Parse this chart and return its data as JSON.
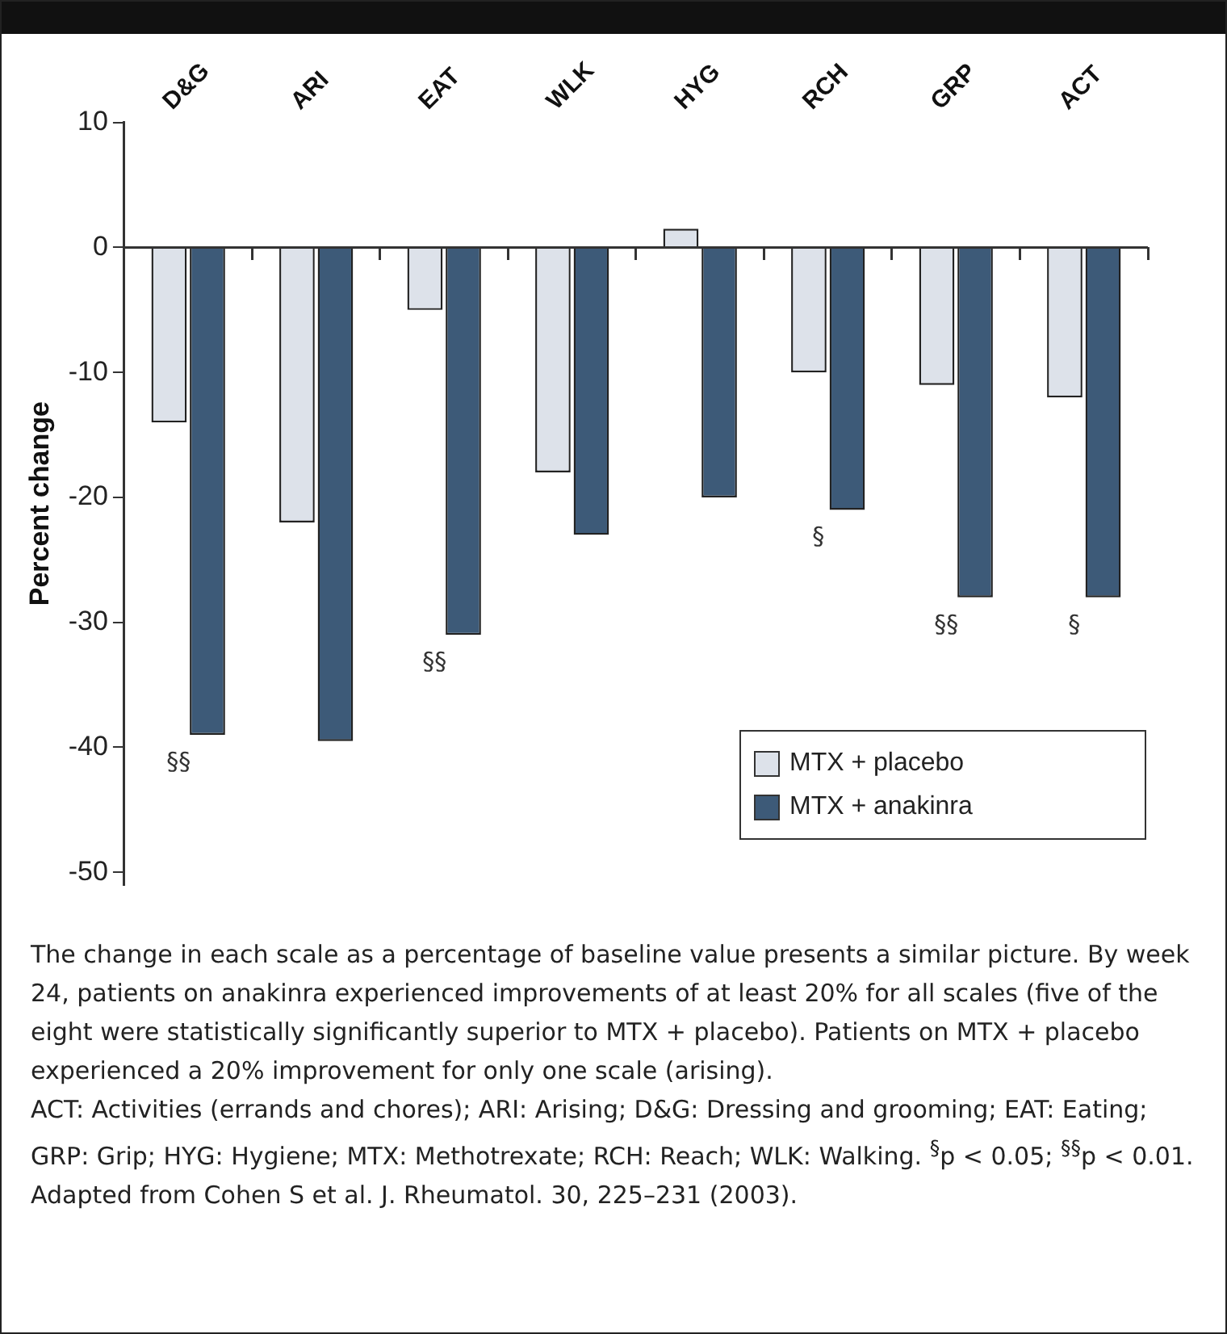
{
  "chart_data": {
    "type": "bar",
    "ylabel": "Percent change",
    "categories": [
      "D&G",
      "ARI",
      "EAT",
      "WLK",
      "HYG",
      "RCH",
      "GRP",
      "ACT"
    ],
    "series": [
      {
        "name": "MTX + placebo",
        "color": "#dde2ea",
        "values": [
          -14,
          -22,
          -5,
          -18,
          1.5,
          -10,
          -11,
          -12
        ]
      },
      {
        "name": "MTX + anakinra",
        "color": "#3d5a78",
        "values": [
          -39,
          -39.5,
          -31,
          -23,
          -20,
          -21,
          -28,
          -28
        ]
      }
    ],
    "ref_lines": [
      {
        "axis": "y",
        "value": 0,
        "color": "#333333"
      }
    ],
    "ylim": [
      -51,
      10
    ],
    "yticks": [
      -50,
      -40,
      -30,
      -20,
      -10,
      0,
      10
    ],
    "grid": false,
    "legend": "bottom right",
    "annotations": [
      {
        "text": "§§",
        "x": "D&G",
        "y": -39
      },
      {
        "text": "§§",
        "x": "EAT",
        "y": -31
      },
      {
        "text": "§",
        "x": "RCH",
        "y": -21
      },
      {
        "text": "§§",
        "x": "GRP",
        "y": -28
      },
      {
        "text": "§",
        "x": "ACT",
        "y": -28
      },
      "The change in each scale as a percentage of baseline value presents a similar picture. By week 24, patients on anakinra experienced improvements of at least 20% for all scales (five of the eight were statistically significantly superior to MTX + placebo). Patients on MTX + placebo experienced a 20% improvement for only one scale (arising).",
      "ACT: Activities (errands and chores); ARI: Arising; D&G: Dressing and grooming; EAT: Eating; GRP: Grip; HYG: Hygiene; MTX: Methotrexate; RCH: Reach; WLK: Walking. $^{§}$p < 0.05; $^{§§}$p < 0.01.",
      "Adapted from Cohen S et al. J. Rheumatol. 30, 225–231 (2003)."
    ]
  }
}
